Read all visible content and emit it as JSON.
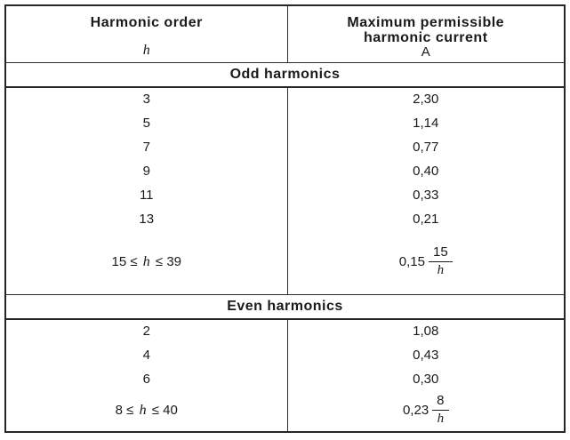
{
  "table": {
    "header": {
      "order_title": "Harmonic order",
      "order_symbol": "h",
      "current_title_line1": "Maximum permissible",
      "current_title_line2": "harmonic current",
      "current_unit": "A"
    },
    "sections": [
      {
        "title": "Odd harmonics",
        "rows": [
          {
            "order": "3",
            "current": "2,30"
          },
          {
            "order": "5",
            "current": "1,14"
          },
          {
            "order": "7",
            "current": "0,77"
          },
          {
            "order": "9",
            "current": "0,40"
          },
          {
            "order": "11",
            "current": "0,33"
          },
          {
            "order": "13",
            "current": "0,21"
          }
        ],
        "range_row": {
          "range_left": "15 ≤",
          "range_var": "h",
          "range_right": "≤ 39",
          "coefficient": "0,15",
          "fraction_numerator": "15",
          "fraction_denominator": "h"
        }
      },
      {
        "title": "Even harmonics",
        "rows": [
          {
            "order": "2",
            "current": "1,08"
          },
          {
            "order": "4",
            "current": "0,43"
          },
          {
            "order": "6",
            "current": "0,30"
          }
        ],
        "range_row": {
          "range_left": "8 ≤",
          "range_var": "h",
          "range_right": "≤ 40",
          "coefficient": "0,23",
          "fraction_numerator": "8",
          "fraction_denominator": "h"
        }
      }
    ]
  },
  "colors": {
    "text": "#1a1a1a",
    "border": "#262626",
    "background": "#ffffff"
  }
}
